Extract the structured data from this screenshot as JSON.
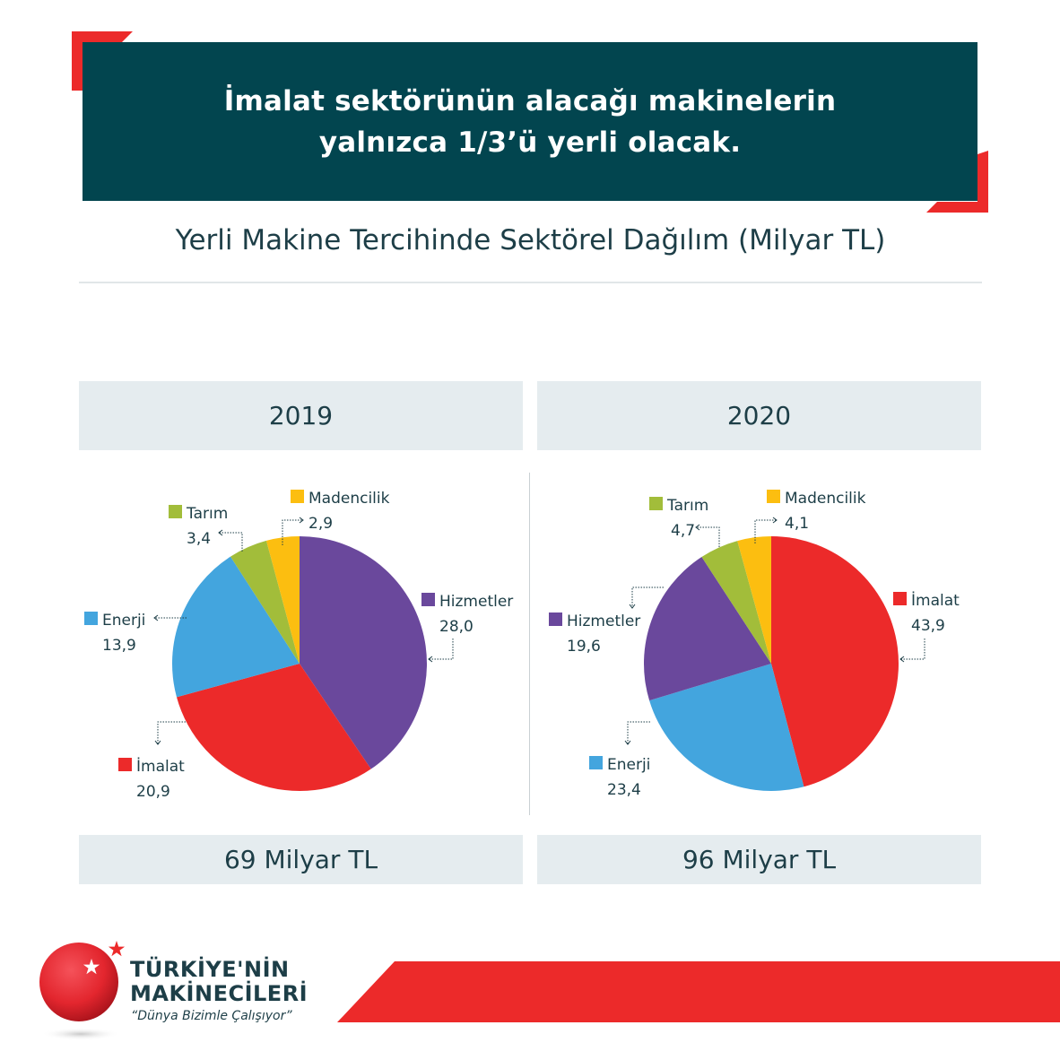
{
  "header": {
    "line1": "İmalat sektörünün alacağı makinelerin",
    "line2": "yalnızca 1/3’ü yerli olacak."
  },
  "subtitle": "Yerli Makine Tercihinde Sektörel Dağılım (Milyar TL)",
  "colors": {
    "banner": "#02454f",
    "accent_red": "#ec2a2a",
    "Hizmetler": "#6a489c",
    "İmalat": "#ec2a2a",
    "Enerji": "#43a5de",
    "Tarım": "#a2bd3a",
    "Madencilik": "#fcbe10",
    "panel_bg": "#e5ecef"
  },
  "chart_data": [
    {
      "type": "pie",
      "title": "2019",
      "total_label": "69 Milyar TL",
      "slices": [
        {
          "label": "Hizmetler",
          "value": 28.0,
          "value_text": "28,0"
        },
        {
          "label": "İmalat",
          "value": 20.9,
          "value_text": "20,9"
        },
        {
          "label": "Enerji",
          "value": 13.9,
          "value_text": "13,9"
        },
        {
          "label": "Tarım",
          "value": 3.4,
          "value_text": "3,4"
        },
        {
          "label": "Madencilik",
          "value": 2.9,
          "value_text": "2,9"
        }
      ]
    },
    {
      "type": "pie",
      "title": "2020",
      "total_label": "96 Milyar TL",
      "slices": [
        {
          "label": "İmalat",
          "value": 43.9,
          "value_text": "43,9"
        },
        {
          "label": "Enerji",
          "value": 23.4,
          "value_text": "23,4"
        },
        {
          "label": "Hizmetler",
          "value": 19.6,
          "value_text": "19,6"
        },
        {
          "label": "Tarım",
          "value": 4.7,
          "value_text": "4,7"
        },
        {
          "label": "Madencilik",
          "value": 4.1,
          "value_text": "4,1"
        }
      ]
    }
  ],
  "footer": {
    "brand_line1": "TÜRKİYE'NİN",
    "brand_line2": "MAKİNECİLERİ",
    "slogan": "“Dünya Bizimle Çalışıyor”"
  }
}
